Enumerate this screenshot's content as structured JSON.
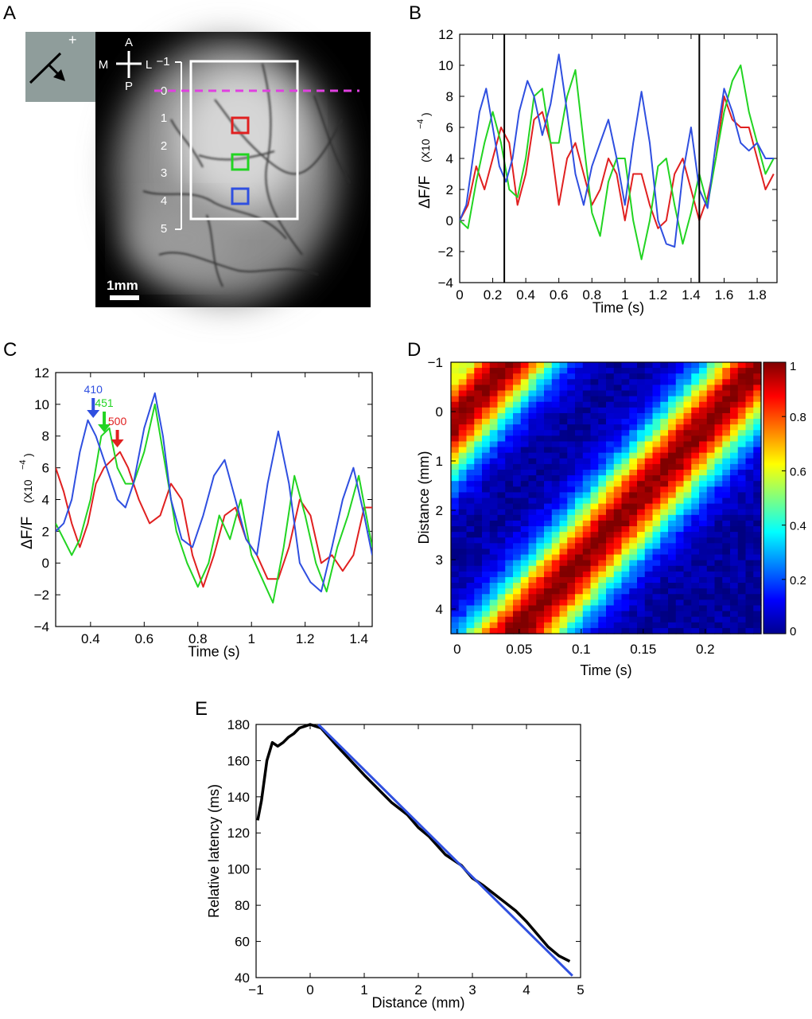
{
  "colors": {
    "red": "#e02020",
    "green": "#22d422",
    "blue": "#2f4fe0",
    "magenta": "#e040e0",
    "black": "#000000",
    "fit": "#3050e0"
  },
  "panels": {
    "A": {
      "letter": "A",
      "orientation": {
        "A": "A",
        "P": "P",
        "M": "M",
        "L": "L"
      },
      "inset_plus": "+",
      "scale_labels": [
        "−1",
        "0",
        "1",
        "2",
        "3",
        "4",
        "5"
      ],
      "scalebar_label": "1mm",
      "roi_colors": [
        "red",
        "green",
        "blue"
      ],
      "icon": "electrode-arrow-icon"
    },
    "B": {
      "letter": "B"
    },
    "C": {
      "letter": "C",
      "arrows": [
        {
          "label": "410",
          "color": "blue"
        },
        {
          "label": "451",
          "color": "green"
        },
        {
          "label": "500",
          "color": "red"
        }
      ]
    },
    "D": {
      "letter": "D"
    },
    "E": {
      "letter": "E"
    }
  },
  "chart_data": [
    {
      "id": "B",
      "type": "line",
      "xlabel": "Time (s)",
      "ylabel": "ΔF/F",
      "yunit": "(X10",
      "yexp": "−4",
      "xlim": [
        0,
        1.92
      ],
      "ylim": [
        -4,
        12
      ],
      "xticks": [
        0,
        0.2,
        0.4,
        0.6,
        0.8,
        1,
        1.2,
        1.4,
        1.6,
        1.8
      ],
      "xticklabels": [
        "0",
        "0.2",
        "0.4",
        "0.6",
        "0.8",
        "1",
        "1.2",
        "1.4",
        "1.6",
        "1.8"
      ],
      "yticks": [
        -4,
        -2,
        0,
        2,
        4,
        6,
        8,
        10,
        12
      ],
      "yticklabels": [
        "−4",
        "−2",
        "0",
        "2",
        "4",
        "6",
        "8",
        "10",
        "12"
      ],
      "vlines": [
        0.27,
        1.45
      ],
      "series": [
        {
          "name": "blue",
          "x": [
            0,
            0.04,
            0.08,
            0.12,
            0.16,
            0.2,
            0.24,
            0.28,
            0.32,
            0.36,
            0.41,
            0.45,
            0.5,
            0.55,
            0.6,
            0.65,
            0.7,
            0.75,
            0.8,
            0.85,
            0.9,
            0.95,
            1.0,
            1.05,
            1.1,
            1.15,
            1.2,
            1.25,
            1.3,
            1.35,
            1.4,
            1.45,
            1.5,
            1.55,
            1.6,
            1.65,
            1.7,
            1.75,
            1.8,
            1.85,
            1.9
          ],
          "y": [
            0,
            1,
            4,
            7,
            8.5,
            6,
            3.5,
            2.5,
            4,
            7,
            9,
            8,
            5.5,
            7.5,
            10.7,
            7,
            3,
            1,
            3.5,
            5,
            6.5,
            4,
            1,
            5,
            8.3,
            5,
            0,
            -1.5,
            -1.7,
            3,
            6,
            2,
            0.8,
            5,
            8.5,
            7,
            5,
            4.5,
            5,
            4,
            4
          ]
        },
        {
          "name": "green",
          "x": [
            0,
            0.05,
            0.1,
            0.15,
            0.2,
            0.25,
            0.3,
            0.35,
            0.4,
            0.45,
            0.5,
            0.55,
            0.6,
            0.65,
            0.7,
            0.75,
            0.8,
            0.85,
            0.9,
            0.95,
            1.0,
            1.05,
            1.1,
            1.15,
            1.2,
            1.25,
            1.3,
            1.35,
            1.4,
            1.45,
            1.5,
            1.55,
            1.6,
            1.65,
            1.7,
            1.75,
            1.8,
            1.85,
            1.9
          ],
          "y": [
            0,
            -0.5,
            2.5,
            5,
            7,
            5,
            2,
            1.5,
            4,
            8,
            8.5,
            5,
            5,
            8,
            9.7,
            5,
            0.5,
            -1,
            2.5,
            4,
            4,
            0,
            -2.5,
            0,
            3.5,
            4,
            1,
            -1.5,
            0.5,
            3,
            1,
            4,
            7,
            9,
            10,
            7,
            5,
            3,
            4
          ]
        },
        {
          "name": "red",
          "x": [
            0,
            0.05,
            0.1,
            0.15,
            0.2,
            0.25,
            0.3,
            0.35,
            0.4,
            0.45,
            0.5,
            0.55,
            0.6,
            0.65,
            0.7,
            0.75,
            0.8,
            0.85,
            0.9,
            0.95,
            1.0,
            1.05,
            1.1,
            1.15,
            1.2,
            1.25,
            1.3,
            1.35,
            1.4,
            1.45,
            1.5,
            1.55,
            1.6,
            1.65,
            1.7,
            1.75,
            1.8,
            1.85,
            1.9
          ],
          "y": [
            0,
            1,
            3.5,
            2,
            4,
            6,
            5,
            1,
            3,
            6.5,
            7,
            5,
            1,
            4,
            5,
            3,
            1,
            2,
            4,
            3,
            0,
            3,
            3,
            1,
            -0.5,
            0,
            3,
            4,
            2,
            0,
            1.5,
            4,
            8,
            6.5,
            6,
            6,
            4,
            2,
            3
          ]
        }
      ]
    },
    {
      "id": "C",
      "type": "line",
      "xlabel": "Time (s)",
      "ylabel": "ΔF/F",
      "yunit": "(X10",
      "yexp": "−4",
      "xlim": [
        0.27,
        1.45
      ],
      "ylim": [
        -4,
        12
      ],
      "xticks": [
        0.4,
        0.6,
        0.8,
        1,
        1.2,
        1.4
      ],
      "xticklabels": [
        "0.4",
        "0.6",
        "0.8",
        "1",
        "1.2",
        "1.4"
      ],
      "yticks": [
        -4,
        -2,
        0,
        2,
        4,
        6,
        8,
        10,
        12
      ],
      "yticklabels": [
        "−4",
        "−2",
        "0",
        "2",
        "4",
        "6",
        "8",
        "10",
        "12"
      ],
      "arrow_x": [
        0.41,
        0.451,
        0.5
      ],
      "series": [
        {
          "name": "blue",
          "x": [
            0.27,
            0.3,
            0.33,
            0.36,
            0.39,
            0.42,
            0.46,
            0.5,
            0.53,
            0.56,
            0.6,
            0.64,
            0.67,
            0.7,
            0.74,
            0.78,
            0.82,
            0.86,
            0.9,
            0.94,
            0.98,
            1.02,
            1.06,
            1.1,
            1.14,
            1.18,
            1.22,
            1.26,
            1.3,
            1.34,
            1.38,
            1.42,
            1.45
          ],
          "y": [
            2,
            2.5,
            4,
            7,
            9,
            8,
            6,
            4,
            3.5,
            5,
            8.5,
            10.7,
            8,
            4,
            1.5,
            1,
            3,
            5.5,
            6.5,
            4,
            1.5,
            0.5,
            5,
            8.3,
            5,
            0,
            -1.2,
            -1.8,
            1,
            4,
            6,
            3,
            0.5
          ]
        },
        {
          "name": "green",
          "x": [
            0.27,
            0.3,
            0.33,
            0.36,
            0.4,
            0.44,
            0.47,
            0.5,
            0.53,
            0.56,
            0.6,
            0.64,
            0.68,
            0.72,
            0.76,
            0.8,
            0.84,
            0.88,
            0.92,
            0.96,
            1.0,
            1.04,
            1.08,
            1.12,
            1.16,
            1.2,
            1.24,
            1.28,
            1.32,
            1.36,
            1.4,
            1.45
          ],
          "y": [
            2.5,
            1.5,
            0.5,
            1.5,
            4,
            8,
            8.5,
            6,
            5,
            5,
            7,
            10,
            6,
            2,
            0,
            -1.5,
            0,
            3,
            1.5,
            4,
            0.5,
            -1,
            -2.5,
            1,
            5.5,
            3,
            0,
            -1.8,
            1,
            3,
            5.5,
            1
          ]
        },
        {
          "name": "red",
          "x": [
            0.27,
            0.3,
            0.33,
            0.36,
            0.39,
            0.42,
            0.45,
            0.48,
            0.51,
            0.54,
            0.58,
            0.62,
            0.66,
            0.7,
            0.74,
            0.78,
            0.82,
            0.86,
            0.9,
            0.94,
            0.98,
            1.02,
            1.06,
            1.1,
            1.14,
            1.18,
            1.22,
            1.26,
            1.3,
            1.34,
            1.38,
            1.42,
            1.45
          ],
          "y": [
            6,
            4.5,
            2.5,
            1,
            2.5,
            5,
            6,
            6.5,
            7,
            6,
            4,
            2.5,
            3,
            5,
            4,
            0.5,
            -1.5,
            0.5,
            3,
            3.5,
            1.5,
            0.5,
            -1,
            -1,
            1,
            4,
            3,
            0,
            0.5,
            -0.5,
            0.5,
            3.5,
            3.5
          ]
        }
      ]
    },
    {
      "id": "D",
      "type": "heatmap",
      "xlabel": "Time (s)",
      "ylabel": "Distance (mm)",
      "xlim": [
        -0.005,
        0.245
      ],
      "ylim": [
        -1,
        4.5
      ],
      "xticks": [
        0,
        0.05,
        0.1,
        0.15,
        0.2
      ],
      "xticklabels": [
        "0",
        "0.05",
        "0.1",
        "0.15",
        "0.2"
      ],
      "yticks": [
        -1,
        0,
        1,
        2,
        3,
        4
      ],
      "yticklabels": [
        "−1",
        "0",
        "1",
        "2",
        "3",
        "4"
      ],
      "colorbar_ticks": [
        0,
        0.2,
        0.4,
        0.6,
        0.8,
        1
      ],
      "colorbar_labels": [
        "0",
        "0.2",
        "0.4",
        "0.6",
        "0.8",
        "1"
      ],
      "model": "normalized traveling-wave amplitude; peak time ≈ 0.046 s at 4.5 mm advancing to ≈ 0.21 s at 0 mm"
    },
    {
      "id": "E",
      "type": "line",
      "xlabel": "Distance (mm)",
      "ylabel": "Relative latency (ms)",
      "xlim": [
        -1,
        5
      ],
      "ylim": [
        40,
        180
      ],
      "xticks": [
        -1,
        0,
        1,
        2,
        3,
        4,
        5
      ],
      "xticklabels": [
        "−1",
        "0",
        "1",
        "2",
        "3",
        "4",
        "5"
      ],
      "yticks": [
        40,
        60,
        80,
        100,
        120,
        140,
        160,
        180
      ],
      "yticklabels": [
        "40",
        "60",
        "80",
        "100",
        "120",
        "140",
        "160",
        "180"
      ],
      "series": [
        {
          "name": "latency",
          "color": "black",
          "x": [
            -0.97,
            -0.9,
            -0.8,
            -0.7,
            -0.6,
            -0.5,
            -0.4,
            -0.3,
            -0.2,
            -0.1,
            0,
            0.1,
            0.2,
            0.5,
            1,
            1.5,
            1.8,
            2,
            2.2,
            2.5,
            2.8,
            3,
            3.2,
            3.5,
            3.8,
            4,
            4.2,
            4.4,
            4.6,
            4.8
          ],
          "y": [
            127,
            138,
            160,
            170,
            168,
            170,
            173,
            175,
            178,
            179,
            180,
            179,
            178,
            168,
            152,
            137,
            130,
            123,
            118,
            108,
            102,
            95,
            91,
            84,
            77,
            71,
            64,
            57,
            52,
            49
          ]
        },
        {
          "name": "linear fit",
          "color": "fit",
          "x": [
            0.15,
            4.85
          ],
          "y": [
            180,
            41
          ]
        }
      ]
    }
  ]
}
